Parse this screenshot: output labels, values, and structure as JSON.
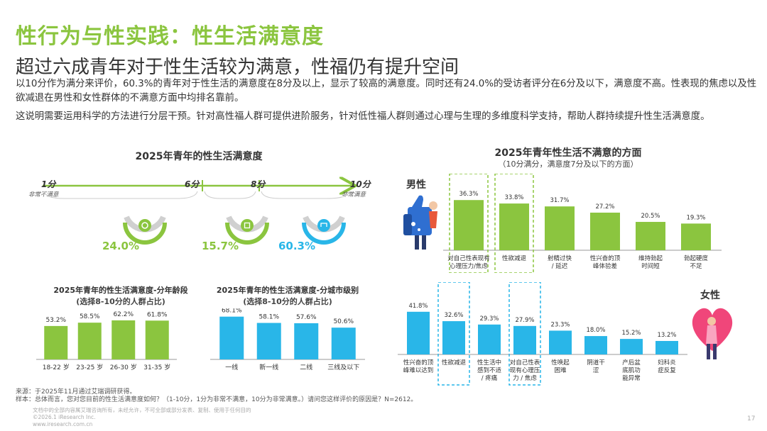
{
  "header": {
    "title": "性行为与性实践：性生活满意度",
    "subtitle": "超过六成青年对于性生活较为满意，性福仍有提升空间",
    "paragraph1": " 以10分作为满分来评价，60.3%的青年对于性生活的满意度在8分及以上，显示了较高的满意度。同时还有24.0%的受访者评分在6分及以下，满意度不高。性表现的焦虑以及性欲减退在男性和女性群体的不满意方面中均排名靠前。",
    "paragraph2": "这说明需要运用科学的方法进行分层干预。针对高性福人群可提供进阶服务，针对低性福人群则通过心理与生理的多维度科学支持，帮助人群持续提升性生活满意度。"
  },
  "colors": {
    "green": "#8bc53f",
    "blue": "#29b6e8",
    "dark": "#333333"
  },
  "icons": [
    "thumbs-up-icon",
    "heart-icon",
    "person-icon"
  ],
  "chart_data": [
    {
      "type": "scale",
      "title": "2025年青年的性生活满意度",
      "scale_start_label": "1分",
      "scale_start_note": "非常不满意",
      "marker_6": "6分",
      "marker_8": "8分",
      "scale_end_label": "10分",
      "scale_end_note": "非常满意",
      "segments": [
        {
          "range": "1-6",
          "value": 24.0,
          "label": "24.0%",
          "color": "#8bc53f"
        },
        {
          "range": "7",
          "value": 15.7,
          "label": "15.7%",
          "color": "#8bc53f"
        },
        {
          "range": "8-10",
          "value": 60.3,
          "label": "60.3%",
          "color": "#29b6e8"
        }
      ]
    },
    {
      "type": "bar",
      "title": "2025年青年的性生活满意度-分年龄段",
      "subtitle": "(选择8-10分的人群占比)",
      "unit": "%",
      "categories": [
        "18-22 岁",
        "23-25 岁",
        "26-30 岁",
        "31-35 岁"
      ],
      "values": [
        53.2,
        58.5,
        62.2,
        61.8
      ],
      "labels": [
        "53.2%",
        "58.5%",
        "62.2%",
        "61.8%"
      ],
      "color": "#8bc53f"
    },
    {
      "type": "bar",
      "title": "2025年青年的性生活满意度-分城市级别",
      "subtitle": "(选择8-10分的人群占比)",
      "unit": "%",
      "categories": [
        "一线",
        "新一线",
        "二线",
        "三线及以下"
      ],
      "values": [
        68.1,
        58.1,
        57.6,
        50.6
      ],
      "labels": [
        "68.1%",
        "58.1%",
        "57.6%",
        "50.6%"
      ],
      "color": "#29b6e8"
    },
    {
      "type": "bar",
      "title": "2025年青年性生活不满意的方面",
      "subtitle": "（10分满分，满意度7分及以下的方面）",
      "group": "男性",
      "unit": "%",
      "categories": [
        [
          "对自己性表现有",
          "心理压力/焦虑"
        ],
        [
          "性欲减退"
        ],
        [
          "射精过快",
          "/ 延迟"
        ],
        [
          "性兴奋的顶",
          "峰体验差"
        ],
        [
          "维持勃起",
          "时间短"
        ],
        [
          "勃起硬度",
          "不足"
        ]
      ],
      "values": [
        36.3,
        33.8,
        31.7,
        27.2,
        20.5,
        19.3
      ],
      "labels": [
        "36.3%",
        "33.8%",
        "31.7%",
        "27.2%",
        "20.5%",
        "19.3%"
      ],
      "highlighted": [
        0,
        1
      ],
      "color": "#8bc53f"
    },
    {
      "type": "bar",
      "group": "女性",
      "unit": "%",
      "categories": [
        [
          "性兴奋的顶",
          "峰难以达到"
        ],
        [
          "性欲减退"
        ],
        [
          "性生活中",
          "感到不适",
          "/ 疼痛"
        ],
        [
          "对自己性表",
          "现有心理压",
          "力 / 焦虑"
        ],
        [
          "性唤起",
          "困难"
        ],
        [
          "阴道干",
          "涩"
        ],
        [
          "产后盆",
          "底肌功",
          "能异常"
        ],
        [
          "妇科炎",
          "症反复"
        ]
      ],
      "values": [
        41.8,
        32.6,
        29.3,
        27.9,
        23.3,
        18.0,
        15.2,
        13.2
      ],
      "labels": [
        "41.8%",
        "32.6%",
        "29.3%",
        "27.9%",
        "23.3%",
        "18.0%",
        "15.2%",
        "13.2%"
      ],
      "highlighted": [
        1,
        3
      ],
      "color": "#29b6e8"
    }
  ],
  "footer": {
    "source": "来源：于2025年11月通过艾瑞调研获得。",
    "sample": "样本：总体而言，您对您目前的性生活满意度如何？（1-10分，1分为非常不满意，10分为非常满意。）请问您这样评价的原因是？N=2612。",
    "copyright_note": "文档中的全部内容属艾瑞咨询所有，未经允许，不可全部或部分发表、复制、使用于任何目的",
    "copyright": "©2026.1 iResearch Inc.",
    "website": "www.iresearch.com.cn",
    "page_number": "17"
  }
}
